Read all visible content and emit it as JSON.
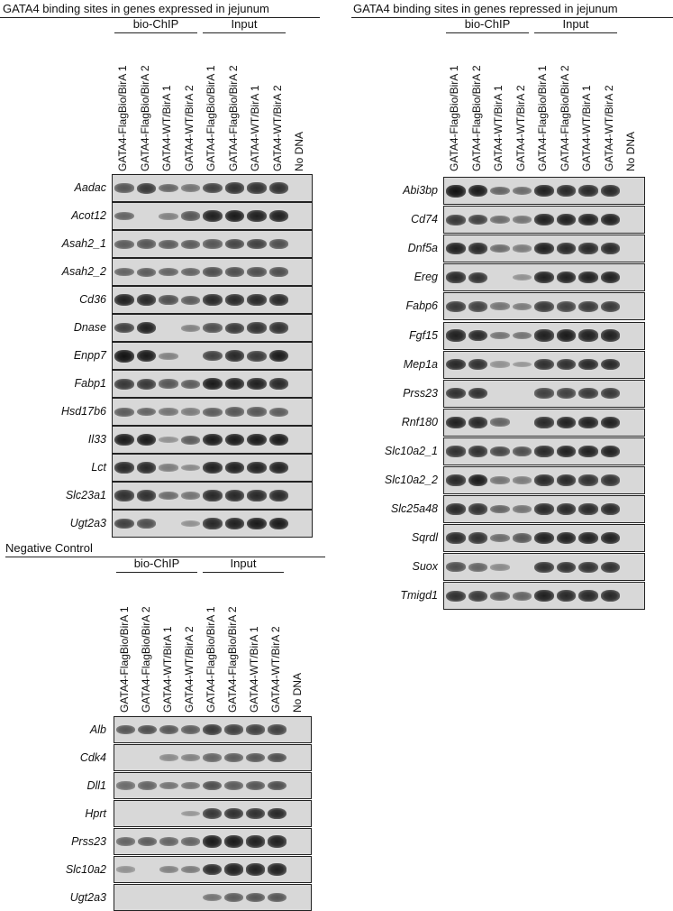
{
  "panels": [
    {
      "id": "expressed",
      "title": "GATA4 binding sites in genes expressed in jejunum",
      "groups": [
        {
          "label": "bio-ChIP",
          "lanes": 4
        },
        {
          "label": "Input",
          "lanes": 4
        }
      ],
      "lanes": [
        "GATA4-FlagBio/BirA 1",
        "GATA4-FlagBio/BirA 2",
        "GATA4-WT/BirA 1",
        "GATA4-WT/BirA 2",
        "GATA4-FlagBio/BirA 1",
        "GATA4-FlagBio/BirA 2",
        "GATA4-WT/BirA 1",
        "GATA4-WT/BirA 2",
        "No DNA"
      ],
      "genes": [
        {
          "name": "Aadac",
          "intensity": [
            0.55,
            0.75,
            0.45,
            0.35,
            0.7,
            0.8,
            0.8,
            0.8,
            0
          ]
        },
        {
          "name": "Acot12",
          "intensity": [
            0.45,
            0,
            0.25,
            0.55,
            0.9,
            0.95,
            0.9,
            0.9,
            0
          ]
        },
        {
          "name": "Asah2_1",
          "intensity": [
            0.5,
            0.55,
            0.5,
            0.5,
            0.55,
            0.65,
            0.7,
            0.6,
            0
          ]
        },
        {
          "name": "Asah2_2",
          "intensity": [
            0.45,
            0.5,
            0.45,
            0.45,
            0.6,
            0.6,
            0.6,
            0.6,
            0
          ]
        },
        {
          "name": "Cd36",
          "intensity": [
            0.9,
            0.85,
            0.6,
            0.5,
            0.85,
            0.85,
            0.85,
            0.85,
            0
          ]
        },
        {
          "name": "Dnase",
          "intensity": [
            0.7,
            0.9,
            0,
            0.25,
            0.6,
            0.75,
            0.8,
            0.8,
            0
          ]
        },
        {
          "name": "Enpp7",
          "intensity": [
            1,
            0.95,
            0.25,
            0,
            0.7,
            0.85,
            0.75,
            0.95,
            0
          ]
        },
        {
          "name": "Fabp1",
          "intensity": [
            0.75,
            0.75,
            0.55,
            0.5,
            0.95,
            0.9,
            0.9,
            0.85,
            0
          ]
        },
        {
          "name": "Hsd17b6",
          "intensity": [
            0.5,
            0.45,
            0.35,
            0.3,
            0.5,
            0.55,
            0.55,
            0.5,
            0
          ]
        },
        {
          "name": "Il33",
          "intensity": [
            0.95,
            0.95,
            0.15,
            0.5,
            0.95,
            0.95,
            0.95,
            0.95,
            0
          ]
        },
        {
          "name": "Lct",
          "intensity": [
            0.85,
            0.85,
            0.3,
            0.2,
            0.9,
            0.9,
            0.9,
            0.9,
            0
          ]
        },
        {
          "name": "Slc23a1",
          "intensity": [
            0.8,
            0.8,
            0.4,
            0.35,
            0.85,
            0.85,
            0.85,
            0.85,
            0
          ]
        },
        {
          "name": "Ugt2a3",
          "intensity": [
            0.7,
            0.6,
            0,
            0.15,
            0.85,
            0.9,
            0.95,
            0.95,
            0
          ]
        }
      ]
    },
    {
      "id": "repressed",
      "title": "GATA4 binding sites in genes repressed in jejunum",
      "groups": [
        {
          "label": "bio-ChIP",
          "lanes": 4
        },
        {
          "label": "Input",
          "lanes": 4
        }
      ],
      "lanes": [
        "GATA4-FlagBio/BirA 1",
        "GATA4-FlagBio/BirA 2",
        "GATA4-WT/BirA 1",
        "GATA4-WT/BirA 2",
        "GATA4-FlagBio/BirA 1",
        "GATA4-FlagBio/BirA 2",
        "GATA4-WT/BirA 1",
        "GATA4-WT/BirA 2",
        "No DNA"
      ],
      "genes": [
        {
          "name": "Abi3bp",
          "intensity": [
            1,
            0.95,
            0.45,
            0.4,
            0.9,
            0.85,
            0.85,
            0.85,
            0
          ]
        },
        {
          "name": "Cd74",
          "intensity": [
            0.75,
            0.7,
            0.4,
            0.35,
            0.9,
            0.9,
            0.9,
            0.9,
            0
          ]
        },
        {
          "name": "Dnf5a",
          "intensity": [
            0.9,
            0.85,
            0.4,
            0.3,
            0.9,
            0.85,
            0.85,
            0.85,
            0
          ]
        },
        {
          "name": "Ereg",
          "intensity": [
            0.85,
            0.8,
            0,
            0.15,
            0.9,
            0.9,
            0.9,
            0.9,
            0
          ]
        },
        {
          "name": "Fabp6",
          "intensity": [
            0.75,
            0.7,
            0.35,
            0.3,
            0.75,
            0.7,
            0.75,
            0.75,
            0
          ]
        },
        {
          "name": "Fgf15",
          "intensity": [
            0.9,
            0.85,
            0.35,
            0.35,
            0.9,
            0.95,
            0.9,
            0.9,
            0
          ]
        },
        {
          "name": "Mep1a",
          "intensity": [
            0.85,
            0.8,
            0.15,
            0.1,
            0.8,
            0.8,
            0.85,
            0.85,
            0
          ]
        },
        {
          "name": "Prss23",
          "intensity": [
            0.8,
            0.8,
            0,
            0,
            0.7,
            0.7,
            0.75,
            0.75,
            0
          ]
        },
        {
          "name": "Rnf180",
          "intensity": [
            0.9,
            0.85,
            0.45,
            0,
            0.85,
            0.9,
            0.9,
            0.9,
            0
          ]
        },
        {
          "name": "Slc10a2_1",
          "intensity": [
            0.8,
            0.8,
            0.65,
            0.6,
            0.85,
            0.9,
            0.9,
            0.9,
            0
          ]
        },
        {
          "name": "Slc10a2_2",
          "intensity": [
            0.85,
            0.95,
            0.35,
            0.3,
            0.85,
            0.85,
            0.8,
            0.8,
            0
          ]
        },
        {
          "name": "Slc25a48",
          "intensity": [
            0.85,
            0.8,
            0.45,
            0.35,
            0.85,
            0.85,
            0.85,
            0.85,
            0
          ]
        },
        {
          "name": "Sqrdl",
          "intensity": [
            0.85,
            0.8,
            0.4,
            0.55,
            0.9,
            0.9,
            0.9,
            0.9,
            0
          ]
        },
        {
          "name": "Suox",
          "intensity": [
            0.6,
            0.45,
            0.2,
            0,
            0.8,
            0.8,
            0.8,
            0.8,
            0
          ]
        },
        {
          "name": "Tmigd1",
          "intensity": [
            0.8,
            0.75,
            0.5,
            0.45,
            0.9,
            0.85,
            0.85,
            0.85,
            0
          ]
        }
      ]
    },
    {
      "id": "negative",
      "title": "Negative Control",
      "groups": [
        {
          "label": "bio-ChIP",
          "lanes": 4
        },
        {
          "label": "Input",
          "lanes": 4
        }
      ],
      "lanes": [
        "GATA4-FlagBio/BirA 1",
        "GATA4-FlagBio/BirA 2",
        "GATA4-WT/BirA 1",
        "GATA4-WT/BirA 2",
        "GATA4-FlagBio/BirA 1",
        "GATA4-FlagBio/BirA 2",
        "GATA4-WT/BirA 1",
        "GATA4-WT/BirA 2",
        "No DNA"
      ],
      "genes": [
        {
          "name": "Alb",
          "intensity": [
            0.55,
            0.6,
            0.55,
            0.5,
            0.75,
            0.7,
            0.7,
            0.7,
            0
          ]
        },
        {
          "name": "Cdk4",
          "intensity": [
            0,
            0,
            0.2,
            0.25,
            0.45,
            0.5,
            0.55,
            0.6,
            0
          ]
        },
        {
          "name": "Dll1",
          "intensity": [
            0.4,
            0.45,
            0.35,
            0.35,
            0.6,
            0.5,
            0.55,
            0.6,
            0
          ]
        },
        {
          "name": "Hprt",
          "intensity": [
            0,
            0,
            0,
            0.1,
            0.75,
            0.8,
            0.8,
            0.85,
            0
          ]
        },
        {
          "name": "Prss23",
          "intensity": [
            0.45,
            0.5,
            0.45,
            0.45,
            0.95,
            0.95,
            0.9,
            0.9,
            0
          ]
        },
        {
          "name": "Slc10a2",
          "intensity": [
            0.15,
            0,
            0.25,
            0.3,
            0.85,
            0.9,
            0.9,
            0.9,
            0
          ]
        },
        {
          "name": "Ugt2a3",
          "intensity": [
            0,
            0,
            0,
            0,
            0.35,
            0.5,
            0.55,
            0.55,
            0
          ]
        }
      ]
    }
  ]
}
